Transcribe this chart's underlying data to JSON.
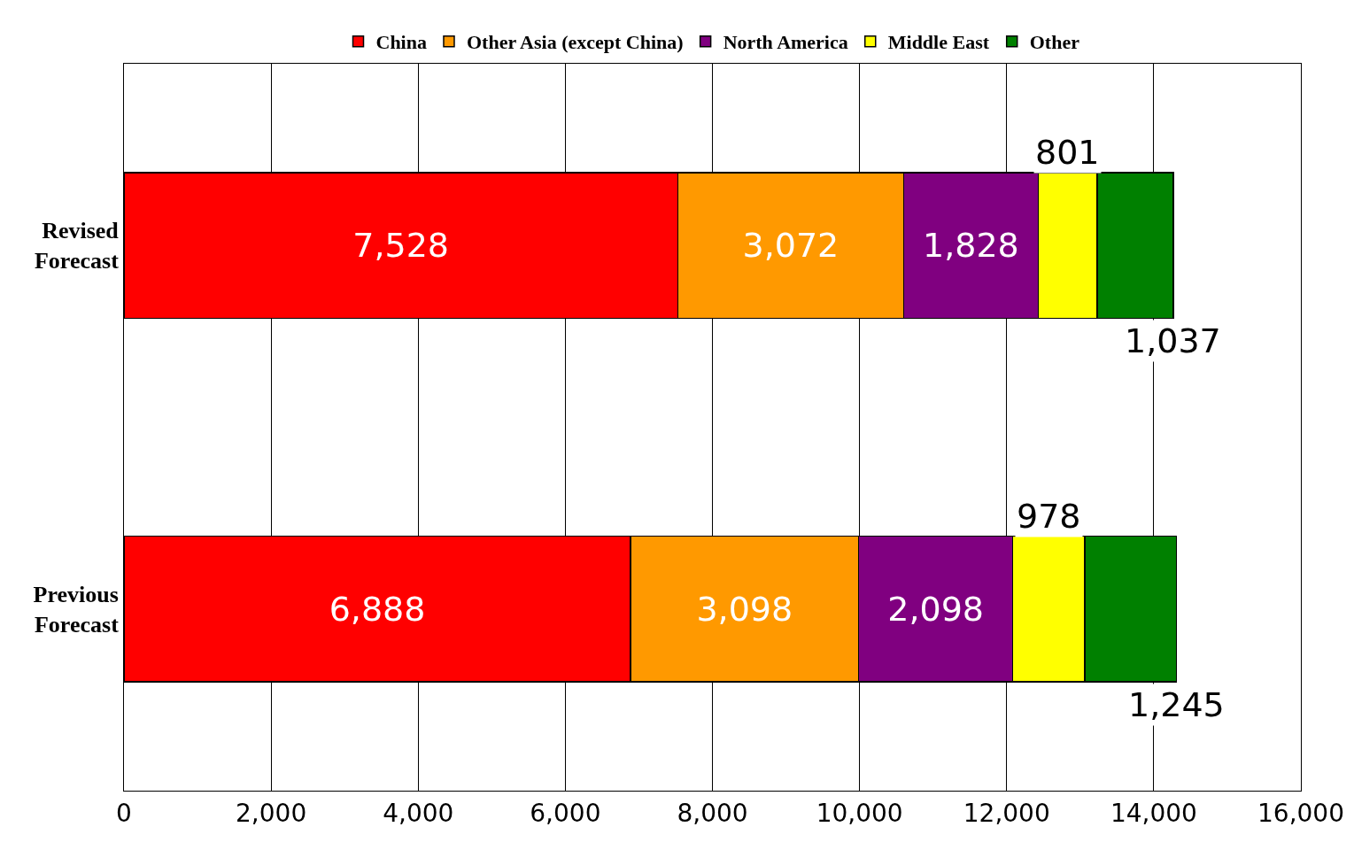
{
  "chart_data": {
    "type": "bar",
    "orientation": "horizontal",
    "stacked": true,
    "categories": [
      "Revised Forecast",
      "Previous Forecast"
    ],
    "series": [
      {
        "name": "China",
        "color": "#ff0000",
        "values": [
          7528,
          6888
        ],
        "value_labels": [
          "7,528",
          "6,888"
        ]
      },
      {
        "name": "Other Asia (except China)",
        "color": "#ff9900",
        "values": [
          3072,
          3098
        ],
        "value_labels": [
          "3,072",
          "3,098"
        ]
      },
      {
        "name": "North America",
        "color": "#800080",
        "values": [
          1828,
          2098
        ],
        "value_labels": [
          "1,828",
          "2,098"
        ]
      },
      {
        "name": "Middle East",
        "color": "#ffff00",
        "values": [
          801,
          978
        ],
        "value_labels": [
          "801",
          "978"
        ]
      },
      {
        "name": "Other",
        "color": "#008000",
        "values": [
          1037,
          1245
        ],
        "value_labels": [
          "1,037",
          "1,245"
        ]
      }
    ],
    "xlim": [
      0,
      16000
    ],
    "xticks": [
      {
        "value": 0,
        "label": "0"
      },
      {
        "value": 2000,
        "label": "2,000"
      },
      {
        "value": 4000,
        "label": "4,000"
      },
      {
        "value": 6000,
        "label": "6,000"
      },
      {
        "value": 8000,
        "label": "8,000"
      },
      {
        "value": 10000,
        "label": "10,000"
      },
      {
        "value": 12000,
        "label": "12,000"
      },
      {
        "value": 14000,
        "label": "14,000"
      },
      {
        "value": 16000,
        "label": "16,000"
      }
    ],
    "grid": "x",
    "legend": "top"
  }
}
